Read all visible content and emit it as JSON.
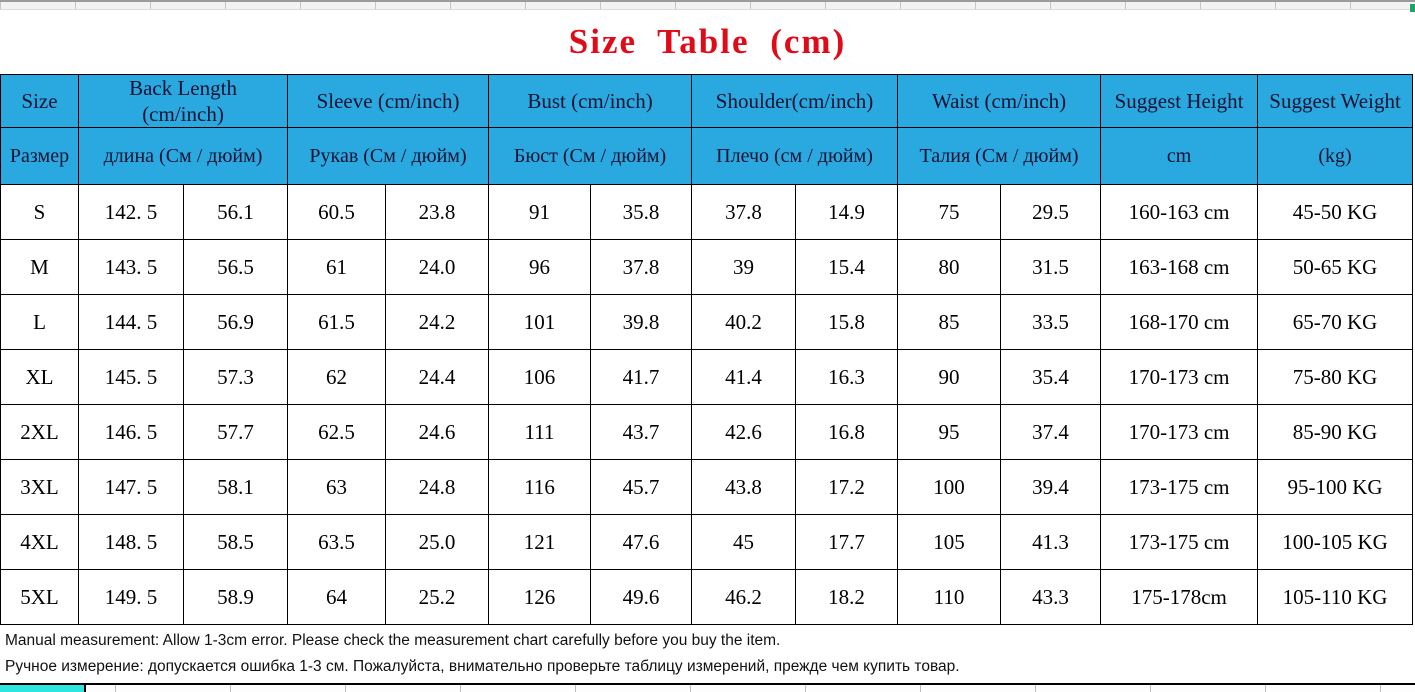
{
  "title": "Size Table (cm)",
  "columns": {
    "size": {
      "en": "Size",
      "ru": "Размер"
    },
    "back_length": {
      "en": "Back Length (cm/inch)",
      "ru": "длина (См / дюйм)"
    },
    "sleeve": {
      "en": "Sleeve (cm/inch)",
      "ru": "Рукав (См / дюйм)"
    },
    "bust": {
      "en": "Bust (cm/inch)",
      "ru": "Бюст (См / дюйм)"
    },
    "shoulder": {
      "en": "Shoulder(cm/inch)",
      "ru": "Плечо (см / дюйм)"
    },
    "waist": {
      "en": "Waist (cm/inch)",
      "ru": "Талия (См / дюйм)"
    },
    "suggest_height": {
      "en": "Suggest Height",
      "ru": "cm"
    },
    "suggest_weight": {
      "en": "Suggest Weight",
      "ru": "(kg)"
    }
  },
  "rows": [
    [
      "S",
      "142. 5",
      "56.1",
      "60.5",
      "23.8",
      "91",
      "35.8",
      "37.8",
      "14.9",
      "75",
      "29.5",
      "160-163 cm",
      "45-50 KG"
    ],
    [
      "M",
      "143. 5",
      "56.5",
      "61",
      "24.0",
      "96",
      "37.8",
      "39",
      "15.4",
      "80",
      "31.5",
      "163-168 cm",
      "50-65 KG"
    ],
    [
      "L",
      "144. 5",
      "56.9",
      "61.5",
      "24.2",
      "101",
      "39.8",
      "40.2",
      "15.8",
      "85",
      "33.5",
      "168-170 cm",
      "65-70 KG"
    ],
    [
      "XL",
      "145. 5",
      "57.3",
      "62",
      "24.4",
      "106",
      "41.7",
      "41.4",
      "16.3",
      "90",
      "35.4",
      "170-173 cm",
      "75-80 KG"
    ],
    [
      "2XL",
      "146. 5",
      "57.7",
      "62.5",
      "24.6",
      "111",
      "43.7",
      "42.6",
      "16.8",
      "95",
      "37.4",
      "170-173 cm",
      "85-90 KG"
    ],
    [
      "3XL",
      "147. 5",
      "58.1",
      "63",
      "24.8",
      "116",
      "45.7",
      "43.8",
      "17.2",
      "100",
      "39.4",
      "173-175 cm",
      "95-100 KG"
    ],
    [
      "4XL",
      "148. 5",
      "58.5",
      "63.5",
      "25.0",
      "121",
      "47.6",
      "45",
      "17.7",
      "105",
      "41.3",
      "173-175 cm",
      "100-105 KG"
    ],
    [
      "5XL",
      "149. 5",
      "58.9",
      "64",
      "25.2",
      "126",
      "49.6",
      "46.2",
      "18.2",
      "110",
      "43.3",
      "175-178cm",
      "105-110 KG"
    ]
  ],
  "notes": {
    "en": "Manual measurement: Allow 1-3cm error. Please check the measurement chart carefully before you buy the item.",
    "ru": "Ручное измерение: допускается ошибка 1-3 см. Пожалуйста, внимательно проверьте таблицу измерений, прежде чем купить товар."
  },
  "colors": {
    "header_bg": "#29a9e0",
    "title_red": "#e00a18",
    "bottom_cell_cyan": "#2ee6e0"
  }
}
